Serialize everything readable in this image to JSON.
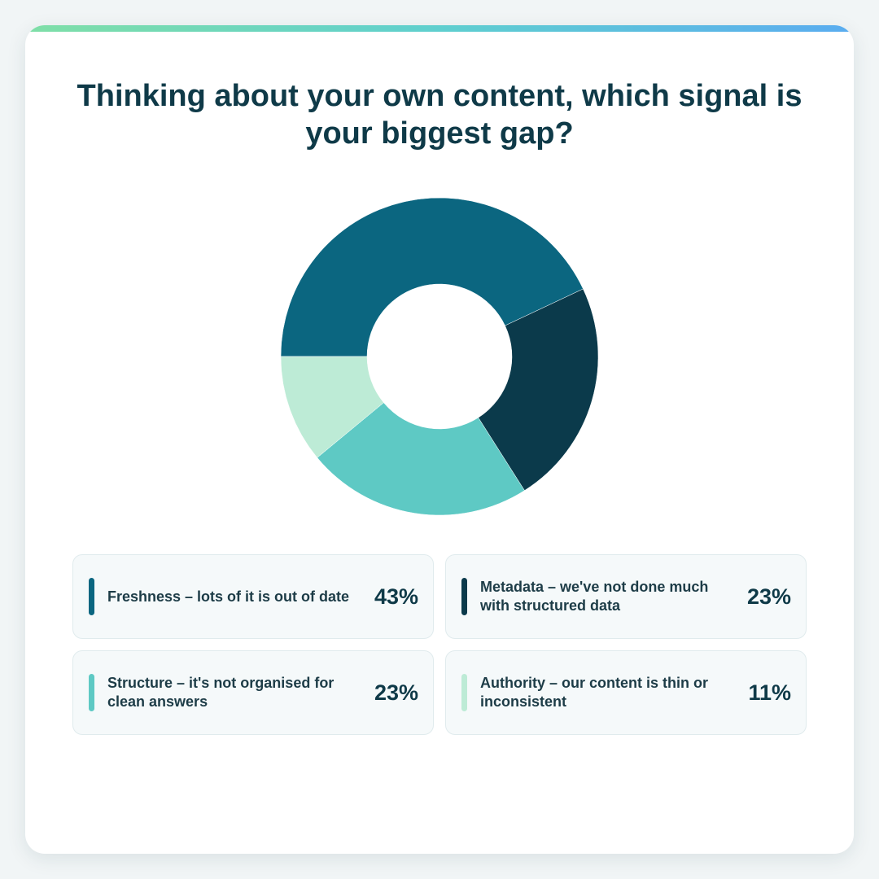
{
  "title": "Thinking about your own content, which signal is your biggest gap?",
  "chart_data": {
    "type": "pie",
    "donut": true,
    "title": "Thinking about your own content, which signal is your biggest gap?",
    "unit": "%",
    "slices": [
      {
        "label": "Freshness – lots of it is out of date",
        "value": 43,
        "display": "43%",
        "color": "#0b6680"
      },
      {
        "label": "Metadata – we've not done much with structured data",
        "value": 23,
        "display": "23%",
        "color": "#0b3a4b"
      },
      {
        "label": "Structure – it's not organised for clean answers",
        "value": 23,
        "display": "23%",
        "color": "#5ec9c4"
      },
      {
        "label": "Authority – our content is thin or inconsistent",
        "value": 11,
        "display": "11%",
        "color": "#bdebd6"
      }
    ],
    "legend_position": "bottom"
  },
  "colors": {
    "title": "#0f3a48",
    "accent_gradient": [
      "#7fdfa7",
      "#5fcfcf",
      "#5aacf0"
    ],
    "card_background": "#ffffff",
    "page_background": "#f1f5f6"
  }
}
